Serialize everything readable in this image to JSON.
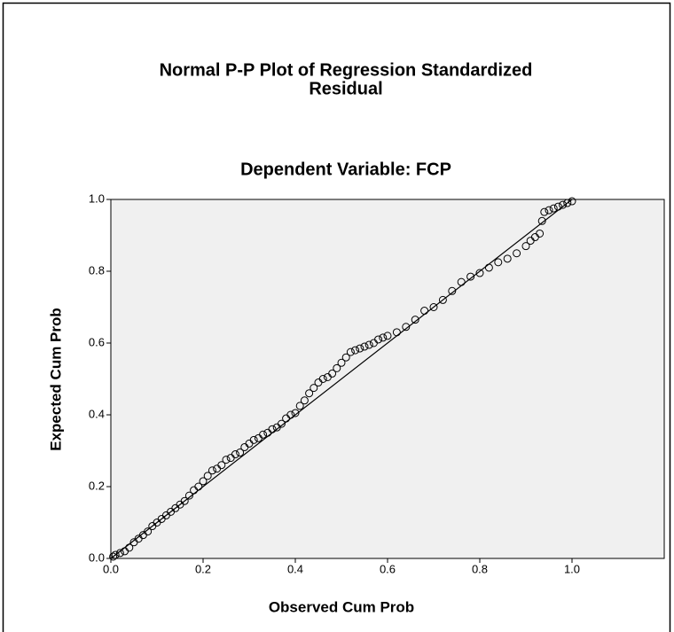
{
  "chart_data": {
    "type": "scatter",
    "title": [
      "Normal P-P Plot of Regression Standardized",
      "Residual"
    ],
    "subtitle": "Dependent Variable: FCP",
    "xlabel": "Observed Cum Prob",
    "ylabel": "Expected Cum Prob",
    "xlim": [
      0,
      1.2
    ],
    "ylim": [
      0,
      1
    ],
    "xticks": [
      {
        "value": 0,
        "label": "0.0"
      },
      0.2,
      0.4,
      0.6,
      0.8,
      {
        "value": 1,
        "label": "1.0"
      }
    ],
    "yticks": [
      {
        "value": 0,
        "label": "0.0"
      },
      0.2,
      0.4,
      0.6,
      0.8,
      {
        "value": 1,
        "label": "1.0"
      }
    ],
    "color": "#000000",
    "reference_line": {
      "x": [
        0,
        1
      ],
      "y": [
        0,
        1
      ]
    },
    "x": [
      0.005,
      0.01,
      0.02,
      0.03,
      0.04,
      0.05,
      0.06,
      0.07,
      0.08,
      0.09,
      0.1,
      0.11,
      0.12,
      0.13,
      0.14,
      0.15,
      0.16,
      0.17,
      0.18,
      0.19,
      0.2,
      0.21,
      0.22,
      0.23,
      0.24,
      0.25,
      0.26,
      0.27,
      0.28,
      0.29,
      0.3,
      0.31,
      0.32,
      0.33,
      0.34,
      0.35,
      0.36,
      0.37,
      0.38,
      0.39,
      0.4,
      0.41,
      0.42,
      0.43,
      0.44,
      0.45,
      0.46,
      0.47,
      0.48,
      0.49,
      0.5,
      0.51,
      0.52,
      0.53,
      0.54,
      0.55,
      0.56,
      0.57,
      0.58,
      0.59,
      0.6,
      0.62,
      0.64,
      0.66,
      0.68,
      0.7,
      0.72,
      0.74,
      0.76,
      0.78,
      0.8,
      0.82,
      0.84,
      0.86,
      0.88,
      0.9,
      0.91,
      0.92,
      0.93,
      0.935,
      0.94,
      0.95,
      0.96,
      0.97,
      0.98,
      0.99,
      1.0
    ],
    "values": [
      0.005,
      0.01,
      0.015,
      0.02,
      0.03,
      0.045,
      0.055,
      0.065,
      0.075,
      0.09,
      0.1,
      0.11,
      0.12,
      0.13,
      0.14,
      0.15,
      0.16,
      0.175,
      0.19,
      0.2,
      0.215,
      0.23,
      0.245,
      0.25,
      0.26,
      0.275,
      0.28,
      0.29,
      0.295,
      0.31,
      0.32,
      0.33,
      0.335,
      0.345,
      0.35,
      0.36,
      0.365,
      0.375,
      0.39,
      0.4,
      0.405,
      0.425,
      0.44,
      0.46,
      0.475,
      0.49,
      0.5,
      0.505,
      0.515,
      0.53,
      0.545,
      0.56,
      0.575,
      0.58,
      0.585,
      0.59,
      0.595,
      0.6,
      0.61,
      0.615,
      0.62,
      0.63,
      0.645,
      0.665,
      0.69,
      0.7,
      0.72,
      0.745,
      0.77,
      0.785,
      0.795,
      0.81,
      0.825,
      0.835,
      0.85,
      0.87,
      0.885,
      0.895,
      0.905,
      0.94,
      0.965,
      0.97,
      0.975,
      0.98,
      0.985,
      0.99,
      0.995
    ]
  }
}
